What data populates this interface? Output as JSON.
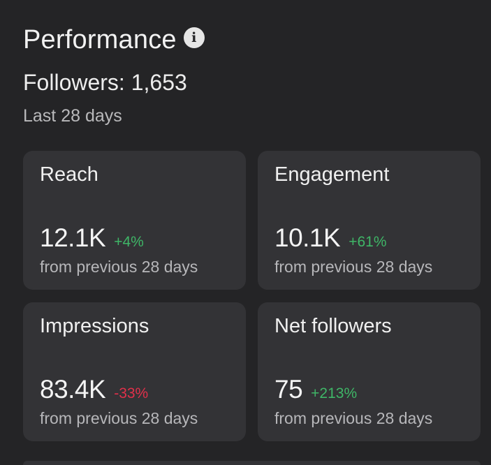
{
  "header": {
    "title": "Performance",
    "info_icon": "info-icon",
    "followers_text": "Followers: 1,653",
    "period_text": "Last 28 days"
  },
  "cards": [
    {
      "label": "Reach",
      "value": "12.1K",
      "delta": "+4%",
      "comparison": "from previous 28 days"
    },
    {
      "label": "Engagement",
      "value": "10.1K",
      "delta": "+61%",
      "comparison": "from previous 28 days"
    },
    {
      "label": "Impressions",
      "value": "83.4K",
      "delta": "-33%",
      "comparison": "from previous 28 days"
    },
    {
      "label": "Net followers",
      "value": "75",
      "delta": "+213%",
      "comparison": "from previous 28 days"
    }
  ],
  "colors": {
    "background": "#242426",
    "card": "#333336",
    "positive": "#3fb667",
    "negative": "#e0304a"
  }
}
